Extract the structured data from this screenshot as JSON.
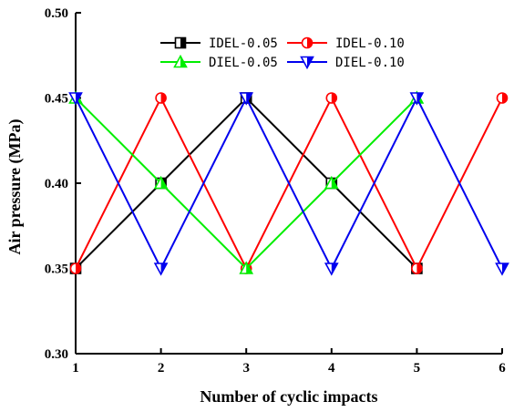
{
  "chart_data": {
    "type": "line",
    "title": "",
    "xlabel": "Number of cyclic impacts",
    "ylabel": "Air pressure (MPa)",
    "xlim": [
      1,
      6
    ],
    "ylim": [
      0.3,
      0.5
    ],
    "xticks": [
      "1",
      "2",
      "3",
      "4",
      "5",
      "6"
    ],
    "yticks": [
      "0.30",
      "0.35",
      "0.40",
      "0.45",
      "0.50"
    ],
    "grid": false,
    "legend_position": "top-center",
    "series": [
      {
        "name": "IDEL-0.05",
        "color": "#000000",
        "marker": "square-half",
        "x": [
          1,
          2,
          3,
          4,
          5
        ],
        "y": [
          0.35,
          0.4,
          0.45,
          0.4,
          0.35
        ]
      },
      {
        "name": "IDEL-0.10",
        "color": "#ff0000",
        "marker": "circle-half",
        "x": [
          1,
          2,
          3,
          4,
          5,
          6
        ],
        "y": [
          0.35,
          0.45,
          0.35,
          0.45,
          0.35,
          0.45
        ]
      },
      {
        "name": "DIEL-0.05",
        "color": "#00ee00",
        "marker": "triangle-up-half",
        "x": [
          1,
          2,
          3,
          4,
          5
        ],
        "y": [
          0.45,
          0.4,
          0.35,
          0.4,
          0.45
        ]
      },
      {
        "name": "DIEL-0.10",
        "color": "#0000ee",
        "marker": "triangle-down-half",
        "x": [
          1,
          2,
          3,
          4,
          5,
          6
        ],
        "y": [
          0.45,
          0.35,
          0.45,
          0.35,
          0.45,
          0.35
        ]
      }
    ]
  }
}
